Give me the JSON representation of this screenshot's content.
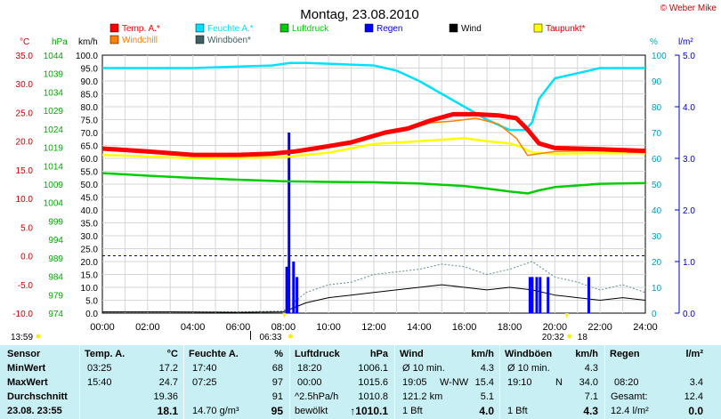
{
  "chart_data": {
    "type": "line",
    "title": "Montag, 23.08.2010",
    "credit": "© Weber Mike",
    "x_ticks": [
      "00:00",
      "02:00",
      "04:00",
      "06:00",
      "08:00",
      "10:00",
      "12:00",
      "14:00",
      "16:00",
      "18:00",
      "20:00",
      "22:00",
      "24:00"
    ],
    "axes": {
      "temp": {
        "unit": "°C",
        "ticks": [
          "35.0",
          "30.0",
          "25.0",
          "20.0",
          "15.0",
          "10.0",
          "5.0",
          "0.0",
          "-5.0",
          "-10.0"
        ],
        "ylim": [
          -10,
          35
        ]
      },
      "pressure": {
        "unit": "hPa",
        "ticks": [
          "1044",
          "1039",
          "1034",
          "1029",
          "1024",
          "1019",
          "1014",
          "1009",
          "1004",
          "999",
          "994",
          "989",
          "984",
          "979",
          "974"
        ],
        "ylim": [
          974,
          1044
        ]
      },
      "wind": {
        "unit": "km/h",
        "ticks": [
          "100.0",
          "95.0",
          "90.0",
          "85.0",
          "80.0",
          "75.0",
          "70.0",
          "65.0",
          "60.0",
          "55.0",
          "50.0",
          "45.0",
          "40.0",
          "35.0",
          "30.0",
          "25.0",
          "20.0",
          "15.0",
          "10.0",
          "5.0",
          "0.0"
        ],
        "ylim": [
          0,
          100
        ]
      },
      "humidity": {
        "unit": "%",
        "ticks": [
          "100",
          "90",
          "80",
          "70",
          "60",
          "50",
          "40",
          "30",
          "20",
          "10",
          "0"
        ],
        "ylim": [
          0,
          100
        ]
      },
      "rain": {
        "unit": "l/m²",
        "ticks": [
          "5.0",
          "4.0",
          "3.0",
          "2.0",
          "1.0",
          "0.0"
        ],
        "ylim": [
          0,
          5
        ]
      }
    },
    "legend": [
      {
        "name": "Temp. A.*",
        "color": "#ff0000"
      },
      {
        "name": "Feuchte A.*",
        "color": "#00e0ff"
      },
      {
        "name": "Luftdruck",
        "color": "#00cc00"
      },
      {
        "name": "Regen",
        "color": "#0000ff"
      },
      {
        "name": "Wind",
        "color": "#000000"
      },
      {
        "name": "Taupunkt*",
        "color": "#ffff00"
      },
      {
        "name": "Windchill",
        "color": "#ff8000"
      },
      {
        "name": "Windböen*",
        "color": "#406060"
      }
    ],
    "series": [
      {
        "name": "Temp. A.*",
        "axis": "temp",
        "x": [
          0,
          2,
          4,
          6,
          7.5,
          8.5,
          9.5,
          11,
          12.5,
          13.5,
          14.5,
          15.5,
          16.5,
          17.5,
          18.3,
          18.8,
          19.3,
          20,
          21,
          22,
          24
        ],
        "y": [
          18.7,
          18.2,
          17.6,
          17.6,
          17.8,
          18.2,
          18.8,
          19.8,
          21.5,
          22.2,
          23.6,
          24.7,
          24.7,
          24.5,
          24,
          22,
          19.6,
          18.8,
          18.7,
          18.6,
          18.3
        ]
      },
      {
        "name": "Feuchte A.*",
        "axis": "humidity",
        "x": [
          0,
          4,
          7.5,
          8.3,
          9,
          12,
          13,
          14,
          15,
          16,
          17,
          18,
          18.7,
          19,
          19.3,
          20,
          21,
          22,
          24
        ],
        "y": [
          95,
          95,
          96,
          97,
          97,
          96,
          94,
          90,
          85,
          80,
          75,
          71,
          71,
          74,
          83,
          91,
          93,
          95,
          95
        ]
      },
      {
        "name": "Luftdruck",
        "axis": "pressure",
        "x": [
          0,
          2,
          4,
          6,
          8,
          10,
          12,
          14,
          16,
          17,
          18,
          18.8,
          19.3,
          20,
          22,
          24
        ],
        "y": [
          1012,
          1011.3,
          1010.7,
          1010.2,
          1009.8,
          1009.6,
          1009.5,
          1009.2,
          1008.5,
          1007.8,
          1007,
          1006.5,
          1007.3,
          1008.2,
          1009.1,
          1009.3
        ]
      },
      {
        "name": "Taupunkt*",
        "axis": "temp",
        "x": [
          0,
          4,
          8,
          10,
          12,
          14,
          16,
          17,
          18,
          18.5,
          19,
          20,
          22,
          24
        ],
        "y": [
          17.6,
          17.0,
          17.2,
          18.0,
          19.5,
          20.0,
          20.5,
          20.0,
          19.6,
          19.0,
          18.0,
          17.8,
          17.9,
          17.9
        ]
      },
      {
        "name": "Windchill",
        "axis": "temp",
        "x": [
          0,
          2,
          4,
          6,
          7.5,
          8.5,
          9.5,
          11,
          12.5,
          13.5,
          14.5,
          15.5,
          16.5,
          17.5,
          18.3,
          18.8,
          19.3,
          20,
          21,
          22,
          24
        ],
        "y": [
          18.6,
          18.1,
          17.5,
          17.5,
          17.7,
          18.1,
          18.7,
          19.7,
          21.3,
          22.0,
          23.2,
          23.5,
          24.0,
          23.0,
          20.5,
          17.5,
          17.8,
          18.2,
          18.3,
          18.3,
          18.0
        ]
      },
      {
        "name": "Wind",
        "axis": "wind",
        "x": [
          0,
          3,
          6,
          8,
          9,
          10,
          11,
          12,
          13,
          14,
          15,
          16,
          17,
          18,
          19,
          20,
          21,
          22,
          23,
          24
        ],
        "y": [
          0.5,
          0.5,
          0.3,
          0.5,
          4,
          6,
          7,
          8,
          9,
          10,
          11,
          10,
          9,
          10,
          9,
          7,
          6,
          5,
          6,
          5
        ]
      },
      {
        "name": "Windböen*",
        "axis": "wind",
        "x": [
          0,
          3,
          6,
          8,
          9,
          10,
          11,
          12,
          13,
          14,
          15,
          16,
          17,
          18,
          19,
          20,
          21,
          22,
          23,
          24
        ],
        "y": [
          0.5,
          0.5,
          0.5,
          0.8,
          8,
          11,
          12,
          15,
          16,
          17,
          19,
          18,
          15,
          17,
          20,
          14,
          12,
          9,
          11,
          8
        ]
      },
      {
        "name": "Regen",
        "type": "bar",
        "axis": "rain",
        "x": [
          8.15,
          8.25,
          8.45,
          8.6,
          18.9,
          19.0,
          19.2,
          19.35,
          19.7,
          21.5
        ],
        "y": [
          0.9,
          3.5,
          1.0,
          0.7,
          0.7,
          0.7,
          0.7,
          0.7,
          0.7,
          0.7
        ]
      }
    ],
    "reference_line": {
      "axis": "temp",
      "value": 0
    },
    "bottom_labels": {
      "left": "13:59",
      "sunrise": "06:33",
      "sunset": "20:32",
      "right_mark": "18"
    }
  },
  "table": {
    "rows": [
      "Sensor",
      "MinWert",
      "MaxWert",
      "Durchschnitt",
      "23.08. 23:55"
    ],
    "temp": {
      "header": "Temp. A.",
      "unit": "°C",
      "min_time": "03:25",
      "min": "17.2",
      "max_time": "15:40",
      "max": "24.7",
      "avg": "19.36",
      "current": "18.1"
    },
    "humidity": {
      "header": "Feuchte A.",
      "unit": "%",
      "min_time": "17:40",
      "min": "68",
      "max_time": "07:25",
      "max": "97",
      "avg": "91",
      "current_note": "14.70 g/m³",
      "current": "95"
    },
    "pressure": {
      "header": "Luftdruck",
      "unit": "hPa",
      "min_time": "18:20",
      "min": "1006.1",
      "max_time": "00:00",
      "max": "1015.6",
      "avg_note": "^2.5hPa/h",
      "avg": "1010.8",
      "current_note": "bewölkt",
      "current": "↑1010.1"
    },
    "wind": {
      "header": "Wind",
      "unit": "km/h",
      "min_note": "Ø 10 min.",
      "min": "4.3",
      "max_time": "19:05",
      "max_dir": "W-NW",
      "max": "15.4",
      "avg_note": "121.2 km",
      "avg": "5.1",
      "current_note": "1 Bft",
      "current": "4.0"
    },
    "gusts": {
      "header": "Windböen",
      "unit": "km/h",
      "min_note": "Ø 10 min.",
      "min": "4.3",
      "max_time": "19:10",
      "max_dir": "N",
      "max": "34.0",
      "avg": "7.1",
      "current_note": "1 Bft",
      "current": "4.3"
    },
    "rain": {
      "header": "Regen",
      "unit": "l/m²",
      "max_time": "08:20",
      "max": "3.4",
      "avg_note": "Gesamt:",
      "avg": "12.4",
      "current": "12.4 l/m²",
      "current_val": "0.0"
    }
  },
  "colors": {
    "table_bg": "#c8f0f4",
    "plot_border": "#000000",
    "grid": "#d0d0d0"
  }
}
